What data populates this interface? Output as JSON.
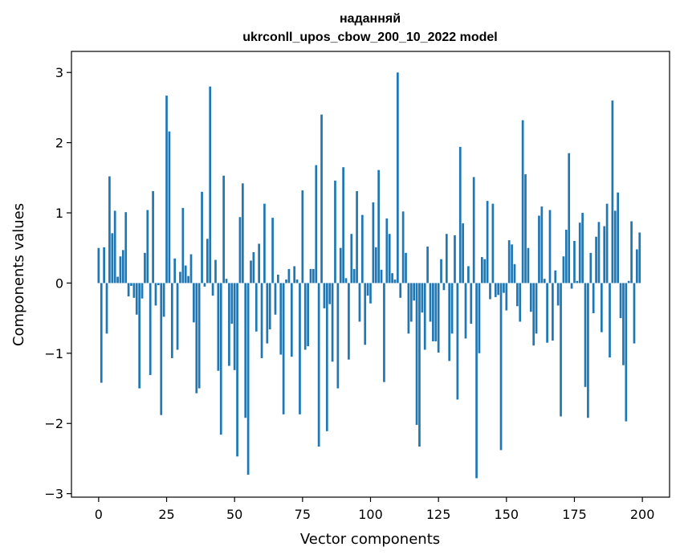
{
  "chart_data": {
    "type": "bar",
    "title_line1": "наданняй",
    "title_line2": "ukrconll_upos_cbow_200_10_2022 model",
    "xlabel": "Vector components",
    "ylabel": "Components values",
    "xlim": [
      -10,
      210
    ],
    "ylim": [
      -3.05,
      3.3
    ],
    "xticks": [
      0,
      25,
      50,
      75,
      100,
      125,
      150,
      175,
      200
    ],
    "yticks": [
      -3,
      -2,
      -1,
      0,
      1,
      2,
      3
    ],
    "ytick_labels": [
      "−3",
      "−2",
      "−1",
      "0",
      "1",
      "2",
      "3"
    ],
    "grid": false,
    "bar_color": "#1f77b4",
    "values": [
      0.5,
      -1.42,
      0.51,
      -0.72,
      1.52,
      0.71,
      1.03,
      0.09,
      0.38,
      0.47,
      1.01,
      -0.19,
      -0.04,
      -0.21,
      -0.45,
      -1.5,
      -0.22,
      0.43,
      1.04,
      -1.31,
      1.31,
      -0.32,
      -0.03,
      -1.88,
      -0.48,
      2.67,
      2.16,
      -1.07,
      0.35,
      -0.95,
      0.16,
      1.07,
      0.25,
      0.1,
      0.41,
      -0.56,
      -1.57,
      -1.5,
      1.3,
      -0.05,
      0.63,
      2.8,
      -0.18,
      0.33,
      -1.25,
      -2.16,
      1.53,
      0.06,
      -1.18,
      -0.58,
      -1.24,
      -2.47,
      0.94,
      1.42,
      -1.92,
      -2.73,
      0.32,
      0.44,
      -0.69,
      0.56,
      -1.07,
      1.13,
      -0.86,
      -0.66,
      0.93,
      -0.45,
      0.12,
      -1.02,
      -1.87,
      0.05,
      0.2,
      -1.05,
      0.24,
      0.05,
      -1.87,
      1.32,
      -0.95,
      -0.9,
      0.2,
      0.2,
      1.68,
      -2.33,
      2.4,
      -0.36,
      -2.11,
      -0.3,
      -1.12,
      1.46,
      -1.5,
      0.5,
      1.65,
      0.07,
      -1.09,
      0.7,
      0.2,
      1.31,
      -0.55,
      0.97,
      -0.88,
      -0.18,
      -0.29,
      1.15,
      0.51,
      1.61,
      0.19,
      -1.41,
      0.92,
      0.7,
      0.14,
      0.05,
      3.0,
      -0.21,
      1.02,
      0.43,
      -0.72,
      -0.55,
      -0.25,
      -2.02,
      -2.33,
      -0.42,
      -0.95,
      0.52,
      -0.55,
      -0.83,
      -0.83,
      -0.99,
      0.34,
      -0.1,
      0.7,
      -1.11,
      -0.72,
      0.68,
      -1.66,
      1.94,
      0.85,
      -0.79,
      0.24,
      -0.58,
      1.51,
      -2.78,
      -1.0,
      0.37,
      0.34,
      1.17,
      -0.23,
      1.13,
      -0.2,
      -0.17,
      -2.38,
      -0.14,
      -0.39,
      0.61,
      0.55,
      0.27,
      -0.33,
      -0.55,
      2.32,
      1.55,
      0.5,
      -0.41,
      -0.89,
      -0.72,
      0.96,
      1.09,
      0.06,
      -0.85,
      1.04,
      -0.82,
      0.18,
      -0.32,
      -1.9,
      0.38,
      0.76,
      1.85,
      -0.08,
      0.6,
      0.03,
      0.86,
      1.0,
      -1.48,
      -1.92,
      0.43,
      -0.43,
      0.66,
      0.87,
      -0.7,
      0.81,
      1.13,
      -1.06,
      2.6,
      1.03,
      1.29,
      -0.5,
      -1.17,
      -1.97,
      0.03,
      0.88,
      -0.86,
      0.48,
      0.72
    ]
  }
}
